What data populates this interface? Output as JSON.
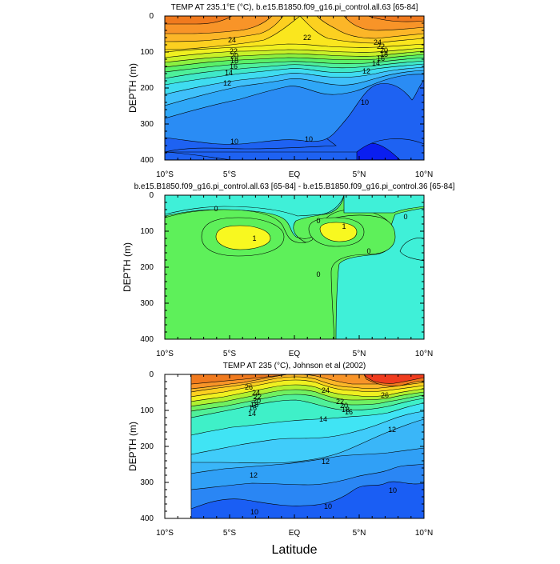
{
  "chart_data": [
    {
      "type": "contour",
      "title": "TEMP AT 235.1°E (°C), b.e15.B1850.f09_g16.pi_control.all.63 [65-84]",
      "xlabel": "",
      "ylabel": "DEPTH (m)",
      "xlim": [
        -10,
        10
      ],
      "ylim": [
        0,
        400
      ],
      "x_ticks": [
        "10°S",
        "5°S",
        "EQ",
        "5°N",
        "10°N"
      ],
      "y_ticks": [
        "0",
        "100",
        "200",
        "300",
        "400"
      ],
      "contour_labels": [
        "24",
        "22",
        "20",
        "18",
        "16",
        "14",
        "12",
        "10",
        "24",
        "22",
        "20",
        "18",
        "16",
        "14",
        "12",
        "10",
        "10",
        "22"
      ],
      "layers": [
        {
          "level": 8,
          "color": "#0a1ef0"
        },
        {
          "level": 9,
          "color": "#1e62f2"
        },
        {
          "level": 10,
          "color": "#2a8cf4"
        },
        {
          "level": 11,
          "color": "#2fa7f7"
        },
        {
          "level": 12,
          "color": "#3fc0fa"
        },
        {
          "level": 13,
          "color": "#3fdcf0"
        },
        {
          "level": 14,
          "color": "#3fe8c8"
        },
        {
          "level": 15,
          "color": "#4ef09a"
        },
        {
          "level": 16,
          "color": "#5af068"
        },
        {
          "level": 17,
          "color": "#8cf040"
        },
        {
          "level": 18,
          "color": "#c8f028"
        },
        {
          "level": 19,
          "color": "#f0f020"
        },
        {
          "level": 20,
          "color": "#fae61e"
        },
        {
          "level": 22,
          "color": "#fcd020"
        },
        {
          "level": 23,
          "color": "#fcb628"
        },
        {
          "level": 24,
          "color": "#f89428"
        },
        {
          "level": 26,
          "color": "#f07a1e"
        }
      ]
    },
    {
      "type": "contour",
      "title": "b.e15.B1850.f09_g16.pi_control.all.63 [65-84] - b.e15.B1850.f09_g16.pi_control.36 [65-84]",
      "xlabel": "",
      "ylabel": "DEPTH (m)",
      "xlim": [
        -10,
        10
      ],
      "ylim": [
        0,
        400
      ],
      "x_ticks": [
        "10°S",
        "5°S",
        "EQ",
        "5°N",
        "10°N"
      ],
      "y_ticks": [
        "0",
        "100",
        "200",
        "300",
        "400"
      ],
      "contour_labels": [
        "0",
        "1",
        "0",
        "1",
        "0",
        "0",
        "0"
      ],
      "layers": [
        {
          "level": -1,
          "color": "#3ff0d8"
        },
        {
          "level": 0,
          "color": "#5ef05a"
        },
        {
          "level": 1,
          "color": "#f8f820"
        }
      ]
    },
    {
      "type": "contour",
      "title": "TEMP AT 235 (°C), Johnson et al (2002)",
      "xlabel": "Latitude",
      "ylabel": "DEPTH (m)",
      "xlim": [
        -10,
        10
      ],
      "ylim": [
        0,
        400
      ],
      "data_xrange": [
        -8,
        10
      ],
      "x_ticks": [
        "10°S",
        "5°S",
        "EQ",
        "5°N",
        "10°N"
      ],
      "y_ticks": [
        "0",
        "100",
        "200",
        "300",
        "400"
      ],
      "contour_labels": [
        "26",
        "24",
        "22",
        "20",
        "18",
        "16",
        "14",
        "24",
        "22",
        "20",
        "18",
        "16",
        "14",
        "12",
        "12",
        "12",
        "10",
        "10",
        "10",
        "26"
      ],
      "layers": [
        {
          "level": 8,
          "color": "#1a5ef4"
        },
        {
          "level": 9,
          "color": "#2a86f4"
        },
        {
          "level": 10,
          "color": "#30a0f6"
        },
        {
          "level": 11,
          "color": "#3ab6f8"
        },
        {
          "level": 12,
          "color": "#40ccfa"
        },
        {
          "level": 13,
          "color": "#40e4f4"
        },
        {
          "level": 14,
          "color": "#3ff0c8"
        },
        {
          "level": 15,
          "color": "#50f098"
        },
        {
          "level": 16,
          "color": "#70f060"
        },
        {
          "level": 17,
          "color": "#b0f030"
        },
        {
          "level": 18,
          "color": "#f0f020"
        },
        {
          "level": 20,
          "color": "#fcd020"
        },
        {
          "level": 22,
          "color": "#fcb628"
        },
        {
          "level": 24,
          "color": "#f89428"
        },
        {
          "level": 26,
          "color": "#f07a1e"
        },
        {
          "level": 28,
          "color": "#f03c1e"
        }
      ]
    }
  ]
}
